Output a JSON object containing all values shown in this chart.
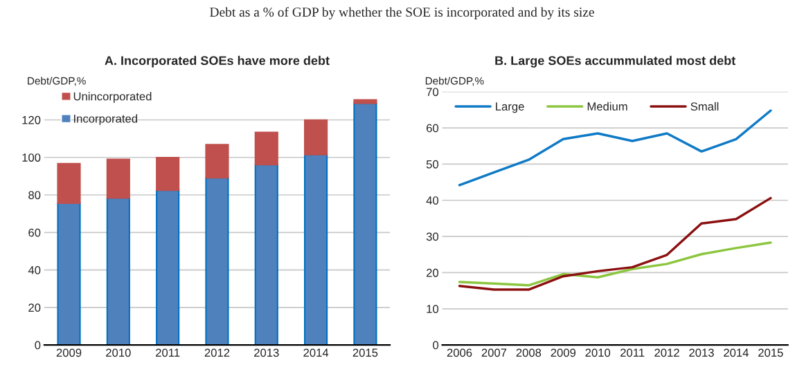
{
  "chart_data": [
    {
      "type": "bar",
      "annotations": [
        "Debt as a % of GDP by whether the SOE is incorporated and by its size"
      ],
      "title": "A. Incorporated SOEs have more debt",
      "ylabel": "Debt/GDP,%",
      "stacked": true,
      "categories": [
        "2009",
        "2010",
        "2011",
        "2012",
        "2013",
        "2014",
        "2015"
      ],
      "series": [
        {
          "name": "Incorporated",
          "color": "#4f81bd",
          "values": [
            75.6,
            78.4,
            82.5,
            89.1,
            96.1,
            101.5,
            128.8
          ]
        },
        {
          "name": "Unincorporated",
          "color": "#c0504d",
          "values": [
            21.1,
            20.6,
            17.4,
            17.7,
            17.2,
            18.4,
            1.9
          ]
        }
      ],
      "ylim": [
        0,
        135
      ],
      "yticks": [
        0,
        20,
        40,
        60,
        80,
        100,
        120
      ],
      "grid": "y",
      "legend": "top left"
    },
    {
      "type": "line",
      "title": "B. Large SOEs accummulated most debt",
      "ylabel": "Debt/GDP,%",
      "categories": [
        "2006",
        "2007",
        "2008",
        "2009",
        "2010",
        "2011",
        "2012",
        "2013",
        "2014",
        "2015"
      ],
      "series": [
        {
          "name": "Large",
          "color": "#0f7ac6",
          "values": [
            44.2,
            47.7,
            51.2,
            56.9,
            58.5,
            56.4,
            58.5,
            53.5,
            56.9,
            64.8
          ]
        },
        {
          "name": "Medium",
          "color": "#8cc63f",
          "values": [
            17.4,
            17.0,
            16.5,
            19.6,
            18.7,
            21.0,
            22.4,
            25.1,
            26.8,
            28.3
          ]
        },
        {
          "name": "Small",
          "color": "#8b1010",
          "values": [
            16.3,
            15.3,
            15.3,
            19.0,
            20.4,
            21.5,
            24.9,
            33.6,
            34.8,
            40.6
          ]
        }
      ],
      "ylim": [
        0,
        70
      ],
      "yticks": [
        0,
        10,
        20,
        30,
        40,
        50,
        60,
        70
      ],
      "grid": "y",
      "legend": "top",
      "marker": "none",
      "line_style": "solid"
    }
  ]
}
